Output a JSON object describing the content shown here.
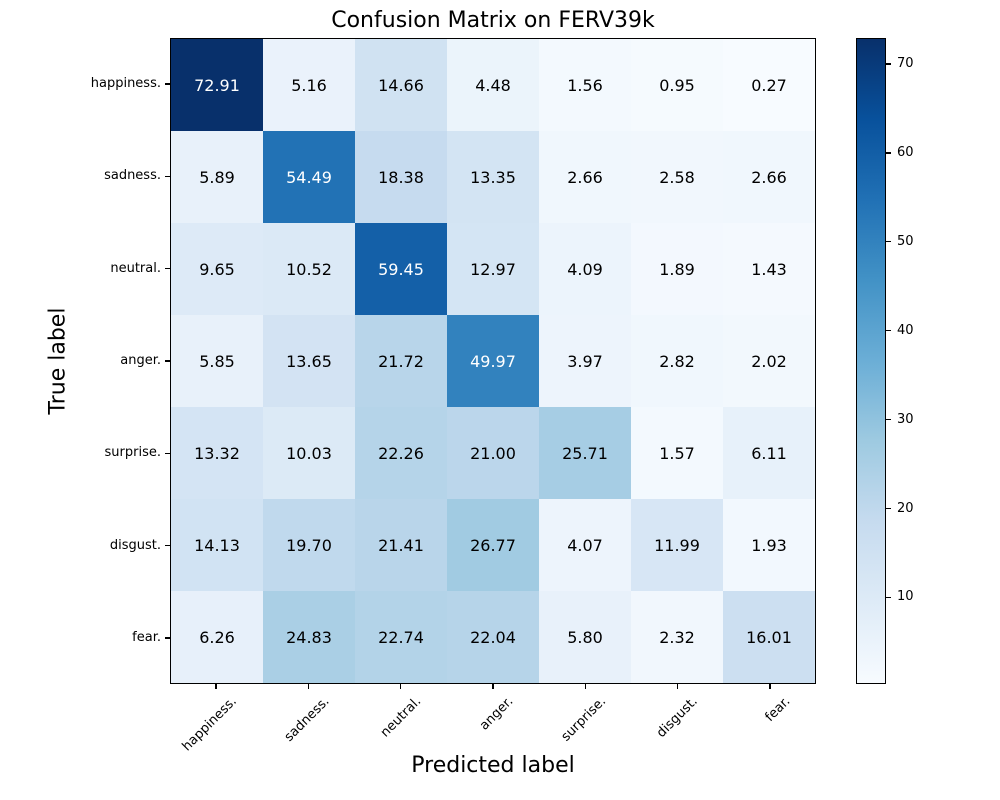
{
  "chart_data": {
    "type": "heatmap",
    "title": "Confusion Matrix on FERV39k",
    "xlabel": "Predicted label",
    "ylabel": "True label",
    "x_tick_labels": [
      "happiness.",
      "sadness.",
      "neutral.",
      "anger.",
      "surprise.",
      "disgust.",
      "fear."
    ],
    "y_tick_labels": [
      "happiness.",
      "sadness.",
      "neutral.",
      "anger.",
      "surprise.",
      "disgust.",
      "fear."
    ],
    "rows": [
      [
        72.91,
        5.16,
        14.66,
        4.48,
        1.56,
        0.95,
        0.27
      ],
      [
        5.89,
        54.49,
        18.38,
        13.35,
        2.66,
        2.58,
        2.66
      ],
      [
        9.65,
        10.52,
        59.45,
        12.97,
        4.09,
        1.89,
        1.43
      ],
      [
        5.85,
        13.65,
        21.72,
        49.97,
        3.97,
        2.82,
        2.02
      ],
      [
        13.32,
        10.03,
        22.26,
        21.0,
        25.71,
        1.57,
        6.11
      ],
      [
        14.13,
        19.7,
        21.41,
        26.77,
        4.07,
        11.99,
        1.93
      ],
      [
        6.26,
        24.83,
        22.74,
        22.04,
        5.8,
        2.32,
        16.01
      ]
    ],
    "value_decimals": 2,
    "colormap": "Blues",
    "colormap_stops": [
      [
        0.0,
        "#f7fbff"
      ],
      [
        0.125,
        "#deebf7"
      ],
      [
        0.25,
        "#c6dbef"
      ],
      [
        0.375,
        "#9ecae1"
      ],
      [
        0.5,
        "#6baed6"
      ],
      [
        0.625,
        "#4292c6"
      ],
      [
        0.75,
        "#2171b5"
      ],
      [
        0.875,
        "#08519c"
      ],
      [
        1.0,
        "#08306b"
      ]
    ],
    "color_range": [
      0.27,
      72.91
    ],
    "colorbar_ticks": [
      10,
      20,
      30,
      40,
      50,
      60,
      70
    ],
    "cell_text_color_low": "#000000",
    "cell_text_color_high": "#ffffff",
    "legend_position": "colorbar-right",
    "grid": false
  }
}
